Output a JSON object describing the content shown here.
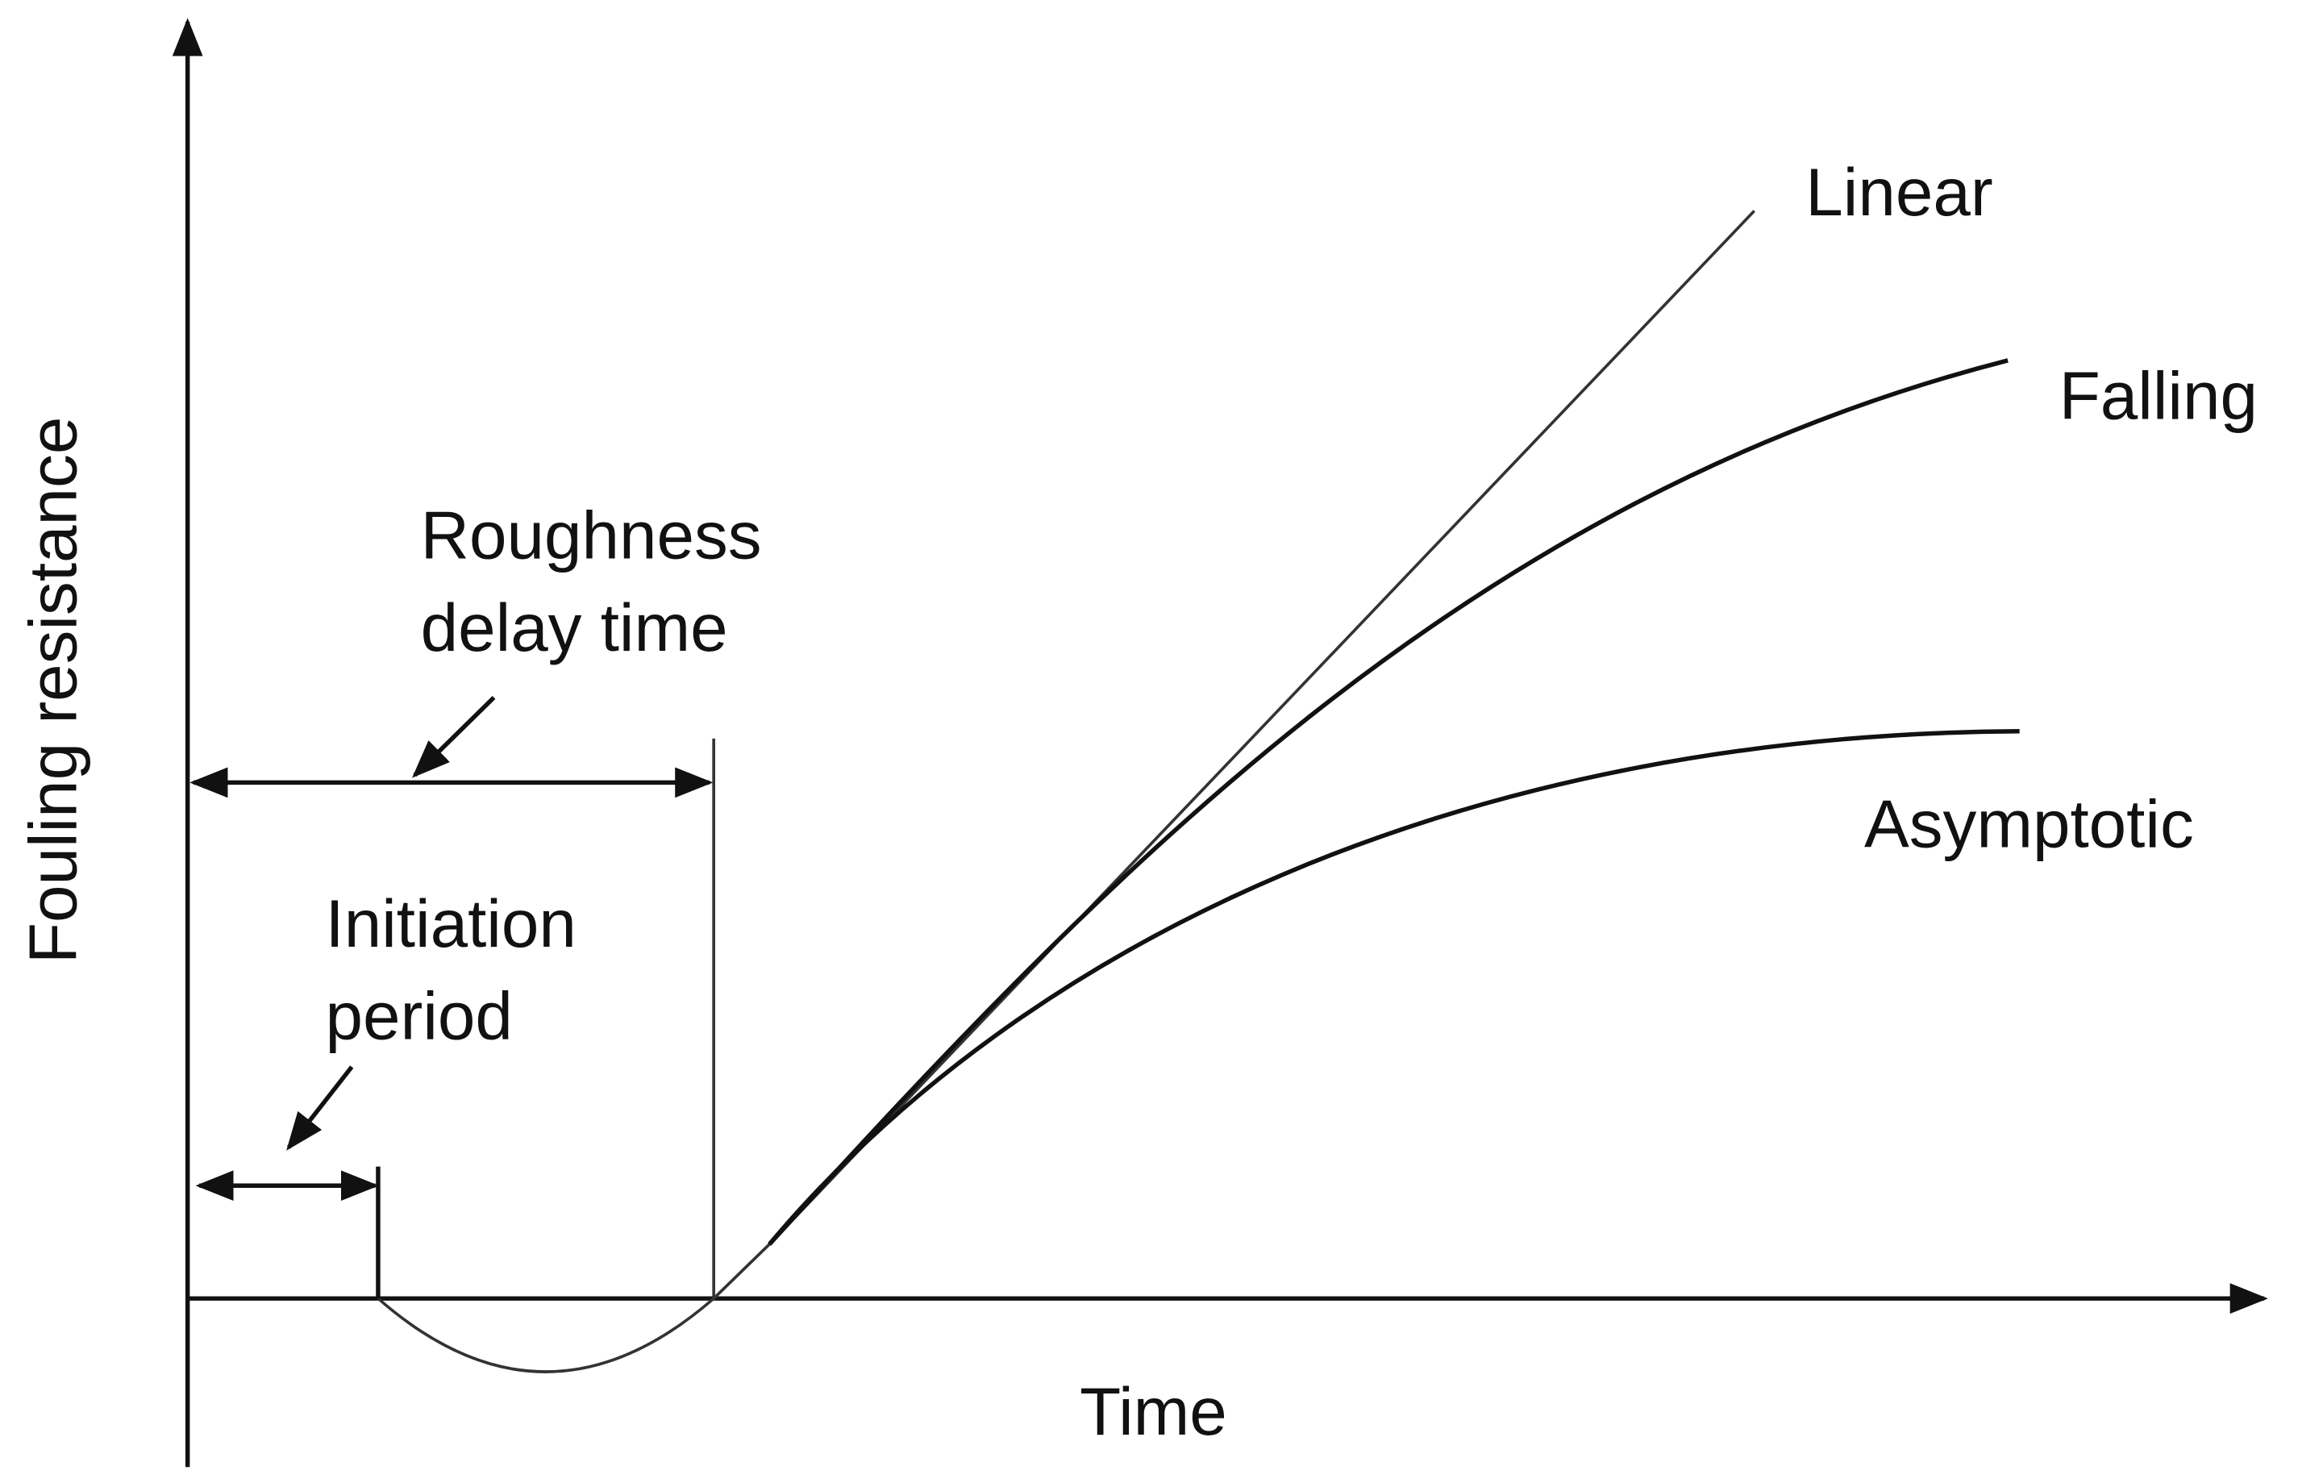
{
  "axes": {
    "y_label": "Fouling resistance",
    "x_label": "Time"
  },
  "curves": {
    "linear": "Linear",
    "falling": "Falling",
    "asymptotic": "Asymptotic"
  },
  "annotations": {
    "roughness_delay": {
      "lines": [
        "Roughness",
        "delay time"
      ]
    },
    "initiation": {
      "lines": [
        "Initiation",
        "period"
      ]
    }
  }
}
